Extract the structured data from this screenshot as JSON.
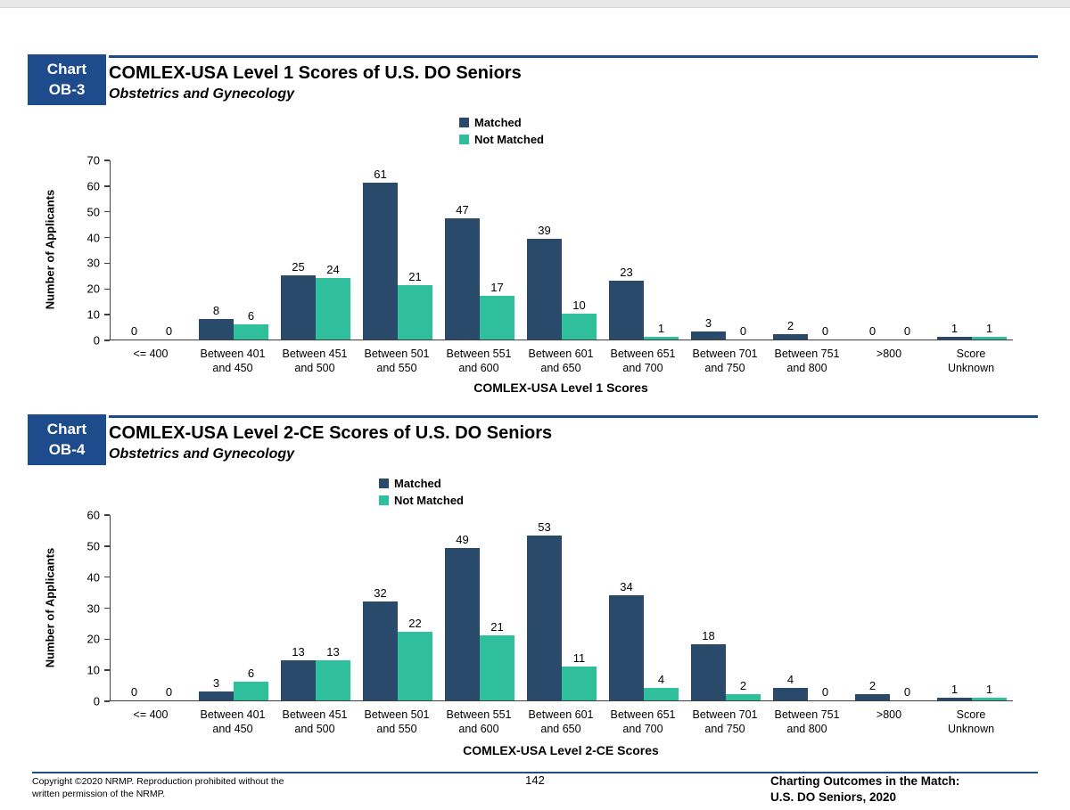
{
  "colors": {
    "matched_bar": "#2A4A6B",
    "not_matched_bar": "#2FBF9C",
    "badge_bg": "#1E4B8C",
    "rule": "#1E4B8C",
    "axis": "#404040"
  },
  "legend": {
    "matched": "Matched",
    "not_matched": "Not Matched"
  },
  "chart_data": [
    {
      "type": "bar",
      "badge_line1": "Chart",
      "badge_line2": "OB-3",
      "title": "COMLEX-USA Level 1 Scores of U.S. DO Seniors",
      "subtitle": "Obstetrics and Gynecology",
      "ylabel": "Number of Applicants",
      "xlabel": "COMLEX-USA Level 1 Scores",
      "ylim": [
        0,
        70
      ],
      "ytick_step": 10,
      "grid": false,
      "legend_position": "top-center",
      "categories": [
        "<= 400",
        "Between 401 and 450",
        "Between 451 and 500",
        "Between 501 and 550",
        "Between 551 and 600",
        "Between 601 and 650",
        "Between 651 and 700",
        "Between 701 and 750",
        "Between 751 and 800",
        ">800",
        "Score Unknown"
      ],
      "series": [
        {
          "name": "Matched",
          "color": "#2A4A6B",
          "values": [
            0,
            8,
            25,
            61,
            47,
            39,
            23,
            3,
            2,
            0,
            1
          ]
        },
        {
          "name": "Not Matched",
          "color": "#2FBF9C",
          "values": [
            0,
            6,
            24,
            21,
            17,
            10,
            1,
            0,
            0,
            0,
            1
          ]
        }
      ]
    },
    {
      "type": "bar",
      "badge_line1": "Chart",
      "badge_line2": "OB-4",
      "title": "COMLEX-USA Level 2-CE Scores of U.S. DO Seniors",
      "subtitle": "Obstetrics and Gynecology",
      "ylabel": "Number of Applicants",
      "xlabel": "COMLEX-USA Level 2-CE Scores",
      "ylim": [
        0,
        60
      ],
      "ytick_step": 10,
      "grid": false,
      "legend_position": "top-center",
      "categories": [
        "<= 400",
        "Between 401 and 450",
        "Between 451 and 500",
        "Between 501 and 550",
        "Between 551 and 600",
        "Between 601 and 650",
        "Between 651 and 700",
        "Between 701 and 750",
        "Between 751 and 800",
        ">800",
        "Score Unknown"
      ],
      "series": [
        {
          "name": "Matched",
          "color": "#2A4A6B",
          "values": [
            0,
            3,
            13,
            32,
            49,
            53,
            34,
            18,
            4,
            2,
            1
          ]
        },
        {
          "name": "Not Matched",
          "color": "#2FBF9C",
          "values": [
            0,
            6,
            13,
            22,
            21,
            11,
            4,
            2,
            0,
            0,
            1
          ]
        }
      ]
    }
  ],
  "footer": {
    "copyright_line1": "Copyright ©2020 NRMP. Reproduction prohibited without the",
    "copyright_line2": "written permission of the NRMP.",
    "page_number": "142",
    "right_line1": "Charting Outcomes in the Match:",
    "right_line2": "U.S. DO Seniors, 2020"
  }
}
